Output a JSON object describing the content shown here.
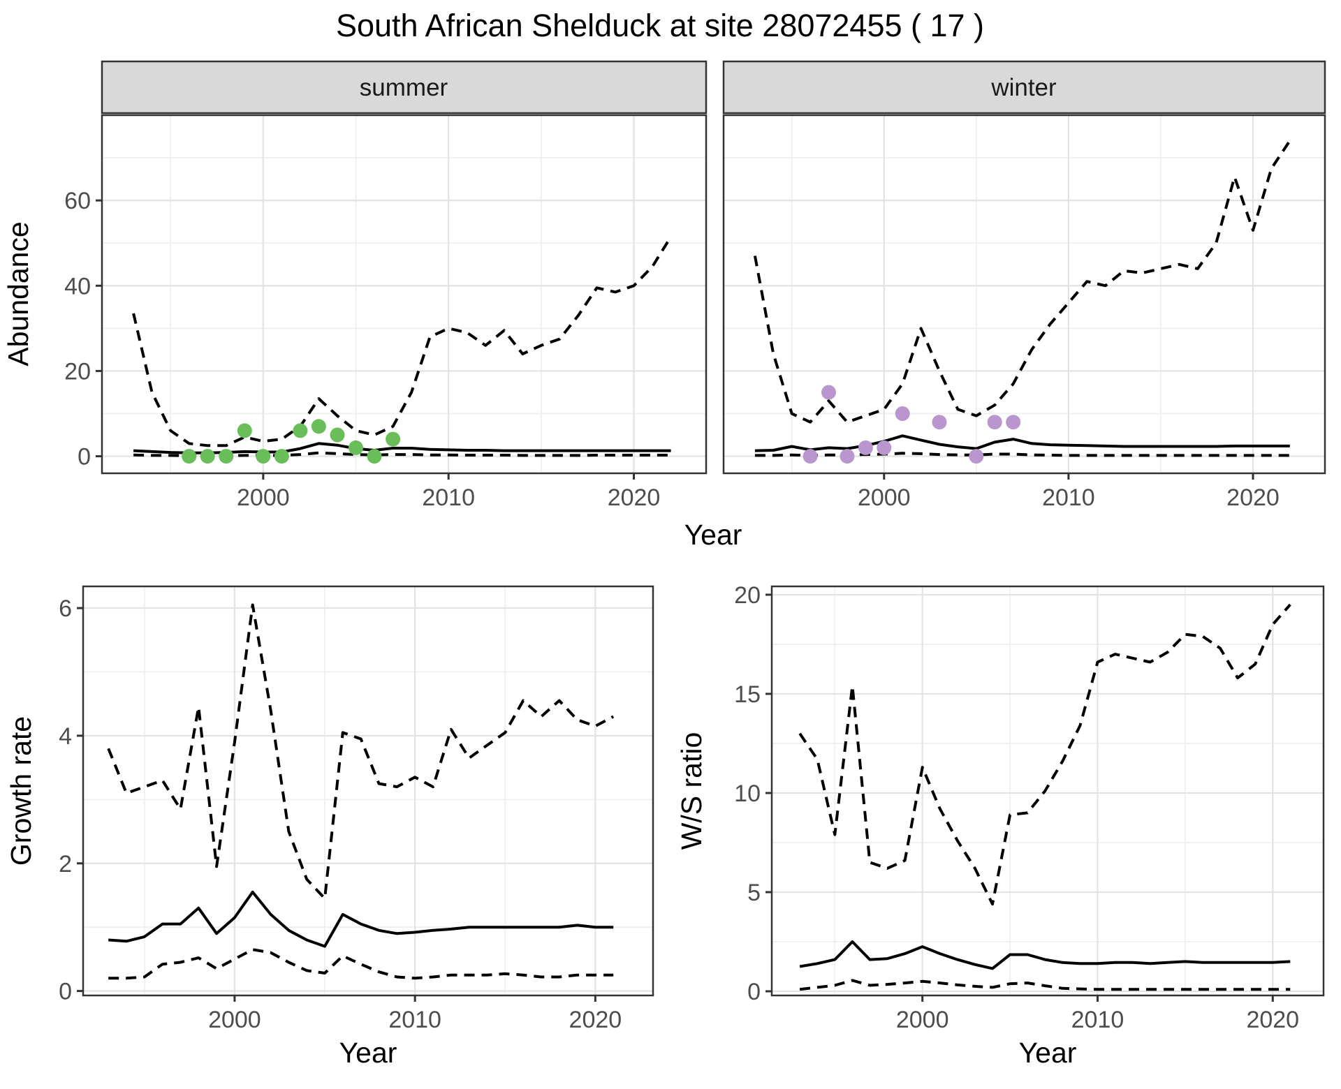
{
  "title": "South African Shelduck at site 28072455 ( 17 )",
  "colors": {
    "observed_summer": "#69be59",
    "observed_winter": "#b996cd",
    "line": "#000000",
    "strip_bg": "#d9d9d9",
    "panel_border": "#333333",
    "grid_major": "#e3e3e3",
    "grid_minor": "#efefef",
    "tick_mark": "#333333",
    "tick_text": "#4d4d4d"
  },
  "chart_data": [
    {
      "type": "line",
      "facet_label": "summer",
      "xlabel": "Year",
      "ylabel": "Abundance",
      "x_domain": [
        1991.3,
        2023.9
      ],
      "y_domain": [
        -4,
        80
      ],
      "x_ticks": [
        2000,
        2010,
        2020
      ],
      "x_minor_ticks": [
        1995,
        2005,
        2015
      ],
      "y_ticks": [
        0,
        20,
        40,
        60
      ],
      "y_minor_ticks": [
        10,
        30,
        50,
        70
      ],
      "grid": true,
      "legend_position": "none",
      "x": [
        1993,
        1994,
        1995,
        1996,
        1997,
        1998,
        1999,
        2000,
        2001,
        2002,
        2003,
        2004,
        2005,
        2006,
        2007,
        2008,
        2009,
        2010,
        2011,
        2012,
        2013,
        2014,
        2015,
        2016,
        2017,
        2018,
        2019,
        2020,
        2021,
        2022
      ],
      "series": [
        {
          "name": "upper_95ci",
          "linetype": "dashed",
          "values": [
            33.5,
            15,
            6,
            3,
            2.5,
            2.5,
            4.5,
            3.5,
            4,
            7,
            13.5,
            9.5,
            6,
            5,
            7,
            15,
            28,
            30,
            29,
            26,
            29.5,
            24,
            26,
            27.5,
            33,
            39.5,
            38.5,
            40,
            44.5,
            51.5
          ]
        },
        {
          "name": "mean",
          "linetype": "solid",
          "values": [
            1.3,
            1.1,
            0.9,
            0.8,
            0.8,
            0.9,
            1.1,
            1.0,
            1.0,
            1.8,
            3.0,
            2.6,
            1.8,
            1.4,
            1.9,
            1.9,
            1.6,
            1.5,
            1.4,
            1.4,
            1.3,
            1.3,
            1.3,
            1.3,
            1.3,
            1.3,
            1.3,
            1.3,
            1.3,
            1.3
          ]
        },
        {
          "name": "lower_95ci",
          "linetype": "dashed",
          "values": [
            0.3,
            0.2,
            0.2,
            0.1,
            0.1,
            0.15,
            0.2,
            0.2,
            0.2,
            0.4,
            0.8,
            0.6,
            0.4,
            0.3,
            0.4,
            0.4,
            0.3,
            0.3,
            0.25,
            0.25,
            0.25,
            0.2,
            0.2,
            0.2,
            0.2,
            0.25,
            0.25,
            0.25,
            0.25,
            0.25
          ]
        }
      ],
      "points": {
        "name": "observed_counts",
        "color_key": "observed_summer",
        "x": [
          1996,
          1997,
          1998,
          1999,
          2000,
          2001,
          2002,
          2003,
          2004,
          2005,
          2006,
          2007
        ],
        "y": [
          0,
          0,
          0,
          6,
          0,
          0,
          6,
          7,
          5,
          2,
          0,
          4
        ]
      }
    },
    {
      "type": "line",
      "facet_label": "winter",
      "xlabel": "Year",
      "ylabel": "Abundance",
      "x_domain": [
        1991.3,
        2023.9
      ],
      "y_domain": [
        -4,
        80
      ],
      "x_ticks": [
        2000,
        2010,
        2020
      ],
      "x_minor_ticks": [
        1995,
        2005,
        2015
      ],
      "y_ticks": [
        0,
        20,
        40,
        60
      ],
      "y_minor_ticks": [
        10,
        30,
        50,
        70
      ],
      "grid": true,
      "legend_position": "none",
      "x": [
        1993,
        1994,
        1995,
        1996,
        1997,
        1998,
        1999,
        2000,
        2001,
        2002,
        2003,
        2004,
        2005,
        2006,
        2007,
        2008,
        2009,
        2010,
        2011,
        2012,
        2013,
        2014,
        2015,
        2016,
        2017,
        2018,
        2019,
        2020,
        2021,
        2022
      ],
      "series": [
        {
          "name": "upper_95ci",
          "linetype": "dashed",
          "values": [
            47,
            24,
            10,
            8,
            13,
            8,
            9.5,
            11,
            17,
            30,
            20,
            11,
            9.5,
            12,
            17,
            25,
            31,
            36,
            41,
            40,
            43.5,
            43,
            44,
            45,
            44,
            50,
            65.5,
            53,
            67.5,
            74
          ]
        },
        {
          "name": "mean",
          "linetype": "solid",
          "values": [
            1.3,
            1.4,
            2.3,
            1.5,
            2.0,
            1.8,
            2.5,
            3.5,
            4.8,
            3.8,
            2.8,
            2.2,
            1.8,
            3.3,
            4.0,
            3.0,
            2.7,
            2.6,
            2.5,
            2.4,
            2.3,
            2.3,
            2.3,
            2.3,
            2.3,
            2.3,
            2.4,
            2.4,
            2.4,
            2.4
          ]
        },
        {
          "name": "lower_95ci",
          "linetype": "dashed",
          "values": [
            0.2,
            0.2,
            0.3,
            0.2,
            0.3,
            0.3,
            0.4,
            0.5,
            0.7,
            0.6,
            0.4,
            0.3,
            0.3,
            0.5,
            0.5,
            0.3,
            0.25,
            0.2,
            0.2,
            0.2,
            0.2,
            0.2,
            0.2,
            0.2,
            0.2,
            0.2,
            0.2,
            0.2,
            0.2,
            0.2
          ]
        }
      ],
      "points": {
        "name": "observed_counts",
        "color_key": "observed_winter",
        "x": [
          1996,
          1997,
          1998,
          1999,
          2000,
          2001,
          2003,
          2005,
          2006,
          2007
        ],
        "y": [
          0,
          15,
          0,
          2,
          2,
          10,
          8,
          0,
          8,
          8
        ]
      }
    },
    {
      "type": "line",
      "facet_label": "",
      "xlabel": "Year",
      "ylabel": "Growth rate",
      "x_domain": [
        1991.6,
        2023.2
      ],
      "y_domain": [
        -0.07,
        6.34
      ],
      "x_ticks": [
        2000,
        2010,
        2020
      ],
      "x_minor_ticks": [
        1995,
        2005,
        2015
      ],
      "y_ticks": [
        0,
        2,
        4,
        6
      ],
      "y_minor_ticks": [
        1,
        3,
        5
      ],
      "grid": true,
      "legend_position": "none",
      "x": [
        1993,
        1994,
        1995,
        1996,
        1997,
        1998,
        1999,
        2000,
        2001,
        2002,
        2003,
        2004,
        2005,
        2006,
        2007,
        2008,
        2009,
        2010,
        2011,
        2012,
        2013,
        2014,
        2015,
        2016,
        2017,
        2018,
        2019,
        2020,
        2021
      ],
      "series": [
        {
          "name": "upper_95ci",
          "linetype": "dashed",
          "values": [
            3.8,
            3.1,
            3.2,
            3.3,
            2.85,
            4.45,
            1.95,
            3.9,
            6.05,
            4.4,
            2.5,
            1.75,
            1.45,
            4.05,
            3.95,
            3.25,
            3.2,
            3.35,
            3.2,
            4.1,
            3.65,
            3.85,
            4.05,
            4.55,
            4.3,
            4.55,
            4.25,
            4.15,
            4.3
          ]
        },
        {
          "name": "mean",
          "linetype": "solid",
          "values": [
            0.8,
            0.78,
            0.85,
            1.05,
            1.05,
            1.3,
            0.9,
            1.15,
            1.55,
            1.2,
            0.95,
            0.8,
            0.7,
            1.2,
            1.05,
            0.95,
            0.9,
            0.92,
            0.95,
            0.97,
            1.0,
            1.0,
            1.0,
            1.0,
            1.0,
            1.0,
            1.03,
            1.0,
            1.0
          ]
        },
        {
          "name": "lower_95ci",
          "linetype": "dashed",
          "values": [
            0.2,
            0.2,
            0.22,
            0.42,
            0.45,
            0.52,
            0.35,
            0.5,
            0.65,
            0.6,
            0.45,
            0.32,
            0.28,
            0.55,
            0.42,
            0.3,
            0.22,
            0.2,
            0.22,
            0.25,
            0.25,
            0.25,
            0.27,
            0.25,
            0.22,
            0.22,
            0.25,
            0.25,
            0.25
          ]
        }
      ]
    },
    {
      "type": "line",
      "facet_label": "",
      "xlabel": "Year",
      "ylabel": "W/S ratio",
      "x_domain": [
        1991.4,
        2022.9
      ],
      "y_domain": [
        -0.21,
        20.42
      ],
      "x_ticks": [
        2000,
        2010,
        2020
      ],
      "x_minor_ticks": [
        1995,
        2005,
        2015
      ],
      "y_ticks": [
        0,
        5,
        10,
        15,
        20
      ],
      "y_minor_ticks": [
        2.5,
        7.5,
        12.5,
        17.5
      ],
      "grid": true,
      "legend_position": "none",
      "x": [
        1993,
        1994,
        1995,
        1996,
        1997,
        1998,
        1999,
        2000,
        2001,
        2002,
        2003,
        2004,
        2005,
        2006,
        2007,
        2008,
        2009,
        2010,
        2011,
        2012,
        2013,
        2014,
        2015,
        2016,
        2017,
        2018,
        2019,
        2020,
        2021
      ],
      "series": [
        {
          "name": "upper_95ci",
          "linetype": "dashed",
          "values": [
            13,
            11.7,
            7.9,
            15.4,
            6.5,
            6.2,
            6.6,
            11.3,
            9.2,
            7.6,
            6.2,
            4.4,
            8.9,
            9.0,
            10.1,
            11.6,
            13.4,
            16.6,
            17.0,
            16.8,
            16.6,
            17.1,
            18.0,
            17.9,
            17.3,
            15.8,
            16.5,
            18.5,
            19.5
          ]
        },
        {
          "name": "mean",
          "linetype": "solid",
          "values": [
            1.25,
            1.4,
            1.6,
            2.5,
            1.6,
            1.65,
            1.9,
            2.25,
            1.9,
            1.6,
            1.35,
            1.15,
            1.85,
            1.85,
            1.6,
            1.45,
            1.4,
            1.4,
            1.45,
            1.45,
            1.4,
            1.45,
            1.5,
            1.45,
            1.45,
            1.45,
            1.45,
            1.45,
            1.5
          ]
        },
        {
          "name": "lower_95ci",
          "linetype": "dashed",
          "values": [
            0.1,
            0.2,
            0.3,
            0.55,
            0.3,
            0.35,
            0.42,
            0.5,
            0.42,
            0.32,
            0.25,
            0.2,
            0.38,
            0.42,
            0.28,
            0.15,
            0.12,
            0.1,
            0.1,
            0.1,
            0.1,
            0.1,
            0.1,
            0.1,
            0.1,
            0.1,
            0.1,
            0.1,
            0.1
          ]
        }
      ]
    }
  ]
}
